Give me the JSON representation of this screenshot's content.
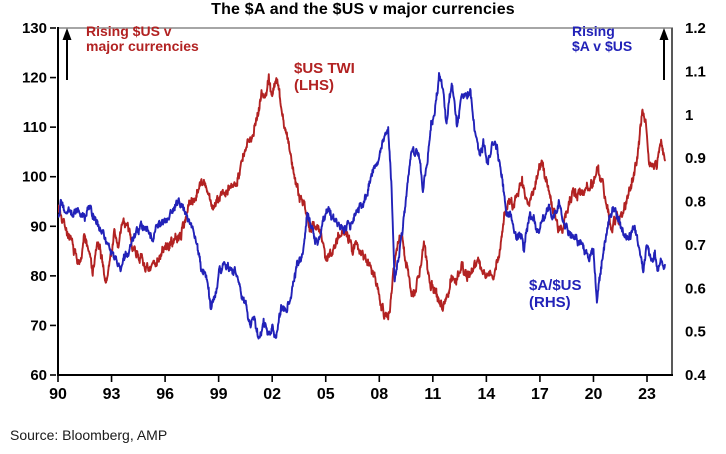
{
  "title": "The $A and the $US v major currencies",
  "source": "Source: Bloomberg, AMP",
  "annotations": {
    "us_rising": [
      "Rising $US v",
      "major currencies"
    ],
    "aud_rising": [
      "Rising",
      "$A v $US"
    ],
    "us_twi_label": [
      "$US TWI",
      "(LHS)"
    ],
    "aud_label": [
      "$A/$US",
      "(RHS)"
    ]
  },
  "colors": {
    "us_line": "#B22222",
    "aud_line": "#2222B8",
    "axis": "#000000",
    "top_border": "#A6A6A6",
    "right_border": "#595959",
    "arrow": "#000000"
  },
  "chart_data": {
    "type": "line",
    "title": "The $A and the $US v major currencies",
    "x_range": [
      1990,
      2024.4
    ],
    "x_tick_years": [
      1990,
      1993,
      1996,
      1999,
      2002,
      2005,
      2008,
      2011,
      2014,
      2017,
      2020,
      2023
    ],
    "x_tick_labels": [
      "90",
      "93",
      "96",
      "99",
      "02",
      "05",
      "08",
      "11",
      "14",
      "17",
      "20",
      "23"
    ],
    "grid": false,
    "legend_position": "in-plot-annotations",
    "left_axis": {
      "range": [
        60,
        130
      ],
      "ticks": [
        60,
        70,
        80,
        90,
        100,
        110,
        120,
        130
      ],
      "tick_labels": [
        "60",
        "70",
        "80",
        "90",
        "100",
        "110",
        "120",
        "130"
      ]
    },
    "right_axis": {
      "range": [
        0.4,
        1.2
      ],
      "ticks": [
        0.4,
        0.5,
        0.6,
        0.7,
        0.8,
        0.9,
        1.0,
        1.1,
        1.2
      ],
      "tick_labels": [
        "0.4",
        "0.5",
        "0.6",
        "0.7",
        "0.8",
        "0.9",
        "1",
        "1.1",
        "1.2"
      ]
    },
    "series": [
      {
        "name": "$US TWI (LHS)",
        "axis": "left",
        "color": "#B22222",
        "anchors": [
          [
            1990.0,
            94
          ],
          [
            1990.3,
            91.5
          ],
          [
            1990.6,
            88
          ],
          [
            1990.9,
            85
          ],
          [
            1991.2,
            82
          ],
          [
            1991.45,
            88
          ],
          [
            1991.7,
            85.5
          ],
          [
            1991.95,
            80.5
          ],
          [
            1992.2,
            86.5
          ],
          [
            1992.45,
            83.5
          ],
          [
            1992.7,
            78.5
          ],
          [
            1992.95,
            84
          ],
          [
            1993.15,
            88.5
          ],
          [
            1993.4,
            86
          ],
          [
            1993.65,
            91.5
          ],
          [
            1993.9,
            89.5
          ],
          [
            1994.2,
            86
          ],
          [
            1994.5,
            84.5
          ],
          [
            1994.8,
            82.5
          ],
          [
            1995.1,
            80.5
          ],
          [
            1995.45,
            83
          ],
          [
            1995.8,
            84.5
          ],
          [
            1996.1,
            86
          ],
          [
            1996.5,
            87
          ],
          [
            1996.9,
            88.5
          ],
          [
            1997.3,
            94
          ],
          [
            1997.7,
            96
          ],
          [
            1998.0,
            99.5
          ],
          [
            1998.3,
            97.5
          ],
          [
            1998.6,
            94
          ],
          [
            1998.9,
            94.5
          ],
          [
            1999.2,
            97
          ],
          [
            1999.5,
            96.5
          ],
          [
            1999.8,
            98
          ],
          [
            2000.1,
            100.5
          ],
          [
            2000.4,
            104
          ],
          [
            2000.7,
            107
          ],
          [
            2000.95,
            109.5
          ],
          [
            2001.2,
            113
          ],
          [
            2001.4,
            117
          ],
          [
            2001.6,
            115.5
          ],
          [
            2001.8,
            120
          ],
          [
            2002.0,
            116.5
          ],
          [
            2002.2,
            119.5
          ],
          [
            2002.4,
            117
          ],
          [
            2002.6,
            112
          ],
          [
            2002.9,
            107
          ],
          [
            2003.2,
            101
          ],
          [
            2003.5,
            96.5
          ],
          [
            2003.8,
            95
          ],
          [
            2004.1,
            89
          ],
          [
            2004.4,
            90.5
          ],
          [
            2004.7,
            88.5
          ],
          [
            2005.0,
            83.5
          ],
          [
            2005.3,
            84.5
          ],
          [
            2005.6,
            87.5
          ],
          [
            2005.9,
            89.5
          ],
          [
            2006.2,
            88
          ],
          [
            2006.5,
            85.5
          ],
          [
            2006.8,
            86
          ],
          [
            2007.1,
            84.5
          ],
          [
            2007.4,
            82.5
          ],
          [
            2007.7,
            81
          ],
          [
            2008.0,
            76.5
          ],
          [
            2008.3,
            71.5
          ],
          [
            2008.6,
            73.5
          ],
          [
            2008.8,
            81
          ],
          [
            2009.0,
            86
          ],
          [
            2009.2,
            88.5
          ],
          [
            2009.5,
            82.5
          ],
          [
            2009.8,
            77
          ],
          [
            2010.05,
            77.5
          ],
          [
            2010.25,
            80.5
          ],
          [
            2010.5,
            86.5
          ],
          [
            2010.8,
            78.5
          ],
          [
            2011.05,
            78
          ],
          [
            2011.25,
            75.5
          ],
          [
            2011.5,
            74
          ],
          [
            2011.8,
            76
          ],
          [
            2012.05,
            79.5
          ],
          [
            2012.3,
            79
          ],
          [
            2012.6,
            82.5
          ],
          [
            2012.9,
            80
          ],
          [
            2013.2,
            81
          ],
          [
            2013.5,
            83.5
          ],
          [
            2013.8,
            81
          ],
          [
            2014.1,
            80
          ],
          [
            2014.4,
            80.5
          ],
          [
            2014.7,
            83.5
          ],
          [
            2015.0,
            92
          ],
          [
            2015.25,
            95.5
          ],
          [
            2015.5,
            94
          ],
          [
            2015.8,
            96.5
          ],
          [
            2016.0,
            99
          ],
          [
            2016.3,
            94.5
          ],
          [
            2016.6,
            96
          ],
          [
            2016.9,
            101.5
          ],
          [
            2017.1,
            102.5
          ],
          [
            2017.4,
            99
          ],
          [
            2017.7,
            94
          ],
          [
            2018.0,
            90.5
          ],
          [
            2018.25,
            89
          ],
          [
            2018.5,
            93.5
          ],
          [
            2018.8,
            96
          ],
          [
            2019.1,
            96.5
          ],
          [
            2019.4,
            97.5
          ],
          [
            2019.7,
            98.5
          ],
          [
            2020.0,
            98.5
          ],
          [
            2020.2,
            101.5
          ],
          [
            2020.45,
            99.5
          ],
          [
            2020.7,
            95.5
          ],
          [
            2021.0,
            90
          ],
          [
            2021.3,
            91.5
          ],
          [
            2021.6,
            92.5
          ],
          [
            2021.9,
            96
          ],
          [
            2022.2,
            99
          ],
          [
            2022.5,
            104.5
          ],
          [
            2022.75,
            113.5
          ],
          [
            2022.95,
            109.5
          ],
          [
            2023.1,
            103.5
          ],
          [
            2023.35,
            101.5
          ],
          [
            2023.55,
            103
          ],
          [
            2023.8,
            106.5
          ],
          [
            2024.0,
            103.5
          ]
        ]
      },
      {
        "name": "$A/$US (RHS)",
        "axis": "right",
        "color": "#2222B8",
        "anchors": [
          [
            1990.0,
            0.765
          ],
          [
            1990.15,
            0.8
          ],
          [
            1990.4,
            0.77
          ],
          [
            1990.7,
            0.785
          ],
          [
            1990.95,
            0.77
          ],
          [
            1991.2,
            0.78
          ],
          [
            1991.5,
            0.765
          ],
          [
            1991.8,
            0.785
          ],
          [
            1992.1,
            0.755
          ],
          [
            1992.4,
            0.745
          ],
          [
            1992.7,
            0.72
          ],
          [
            1993.0,
            0.685
          ],
          [
            1993.25,
            0.67
          ],
          [
            1993.5,
            0.645
          ],
          [
            1993.8,
            0.675
          ],
          [
            1994.1,
            0.705
          ],
          [
            1994.4,
            0.73
          ],
          [
            1994.7,
            0.74
          ],
          [
            1995.0,
            0.735
          ],
          [
            1995.3,
            0.72
          ],
          [
            1995.6,
            0.745
          ],
          [
            1995.9,
            0.755
          ],
          [
            1996.2,
            0.765
          ],
          [
            1996.5,
            0.79
          ],
          [
            1996.8,
            0.795
          ],
          [
            1997.1,
            0.78
          ],
          [
            1997.4,
            0.755
          ],
          [
            1997.7,
            0.72
          ],
          [
            1998.0,
            0.65
          ],
          [
            1998.3,
            0.63
          ],
          [
            1998.55,
            0.56
          ],
          [
            1998.8,
            0.59
          ],
          [
            1999.05,
            0.64
          ],
          [
            1999.3,
            0.655
          ],
          [
            1999.6,
            0.645
          ],
          [
            1999.9,
            0.635
          ],
          [
            2000.2,
            0.6
          ],
          [
            2000.5,
            0.565
          ],
          [
            2000.75,
            0.52
          ],
          [
            2001.0,
            0.53
          ],
          [
            2001.25,
            0.48
          ],
          [
            2001.5,
            0.515
          ],
          [
            2001.75,
            0.5
          ],
          [
            2002.0,
            0.515
          ],
          [
            2002.2,
            0.49
          ],
          [
            2002.5,
            0.55
          ],
          [
            2002.8,
            0.555
          ],
          [
            2003.1,
            0.59
          ],
          [
            2003.4,
            0.655
          ],
          [
            2003.7,
            0.675
          ],
          [
            2003.95,
            0.77
          ],
          [
            2004.2,
            0.74
          ],
          [
            2004.5,
            0.7
          ],
          [
            2004.8,
            0.745
          ],
          [
            2005.05,
            0.78
          ],
          [
            2005.3,
            0.765
          ],
          [
            2005.6,
            0.755
          ],
          [
            2005.9,
            0.74
          ],
          [
            2006.2,
            0.74
          ],
          [
            2006.5,
            0.755
          ],
          [
            2006.8,
            0.785
          ],
          [
            2007.1,
            0.79
          ],
          [
            2007.4,
            0.835
          ],
          [
            2007.7,
            0.88
          ],
          [
            2007.95,
            0.9
          ],
          [
            2008.2,
            0.935
          ],
          [
            2008.5,
            0.965
          ],
          [
            2008.7,
            0.82
          ],
          [
            2008.85,
            0.62
          ],
          [
            2009.0,
            0.655
          ],
          [
            2009.2,
            0.7
          ],
          [
            2009.5,
            0.8
          ],
          [
            2009.8,
            0.92
          ],
          [
            2010.0,
            0.91
          ],
          [
            2010.2,
            0.92
          ],
          [
            2010.45,
            0.83
          ],
          [
            2010.7,
            0.9
          ],
          [
            2010.9,
            0.985
          ],
          [
            2011.1,
            1.0
          ],
          [
            2011.35,
            1.095
          ],
          [
            2011.6,
            1.05
          ],
          [
            2011.75,
            0.97
          ],
          [
            2011.9,
            1.03
          ],
          [
            2012.1,
            1.07
          ],
          [
            2012.35,
            0.97
          ],
          [
            2012.6,
            1.04
          ],
          [
            2012.9,
            1.045
          ],
          [
            2013.1,
            1.05
          ],
          [
            2013.35,
            0.96
          ],
          [
            2013.6,
            0.905
          ],
          [
            2013.85,
            0.935
          ],
          [
            2014.1,
            0.89
          ],
          [
            2014.35,
            0.94
          ],
          [
            2014.6,
            0.925
          ],
          [
            2014.85,
            0.86
          ],
          [
            2015.1,
            0.78
          ],
          [
            2015.4,
            0.765
          ],
          [
            2015.7,
            0.71
          ],
          [
            2015.95,
            0.73
          ],
          [
            2016.1,
            0.69
          ],
          [
            2016.4,
            0.77
          ],
          [
            2016.7,
            0.755
          ],
          [
            2016.95,
            0.72
          ],
          [
            2017.2,
            0.76
          ],
          [
            2017.5,
            0.79
          ],
          [
            2017.8,
            0.76
          ],
          [
            2018.05,
            0.805
          ],
          [
            2018.3,
            0.76
          ],
          [
            2018.6,
            0.73
          ],
          [
            2018.9,
            0.71
          ],
          [
            2019.2,
            0.71
          ],
          [
            2019.5,
            0.69
          ],
          [
            2019.8,
            0.675
          ],
          [
            2020.0,
            0.69
          ],
          [
            2020.2,
            0.57
          ],
          [
            2020.45,
            0.655
          ],
          [
            2020.7,
            0.715
          ],
          [
            2020.95,
            0.77
          ],
          [
            2021.15,
            0.78
          ],
          [
            2021.4,
            0.76
          ],
          [
            2021.65,
            0.73
          ],
          [
            2021.9,
            0.71
          ],
          [
            2022.1,
            0.72
          ],
          [
            2022.3,
            0.745
          ],
          [
            2022.55,
            0.69
          ],
          [
            2022.8,
            0.64
          ],
          [
            2023.0,
            0.7
          ],
          [
            2023.2,
            0.665
          ],
          [
            2023.45,
            0.68
          ],
          [
            2023.6,
            0.635
          ],
          [
            2023.8,
            0.655
          ],
          [
            2024.0,
            0.655
          ]
        ]
      }
    ],
    "data_end_year": 2024.0,
    "noise": {
      "seed": 7,
      "ar": 0.7,
      "amp_left": 1.5,
      "amp_right": 0.014
    }
  }
}
